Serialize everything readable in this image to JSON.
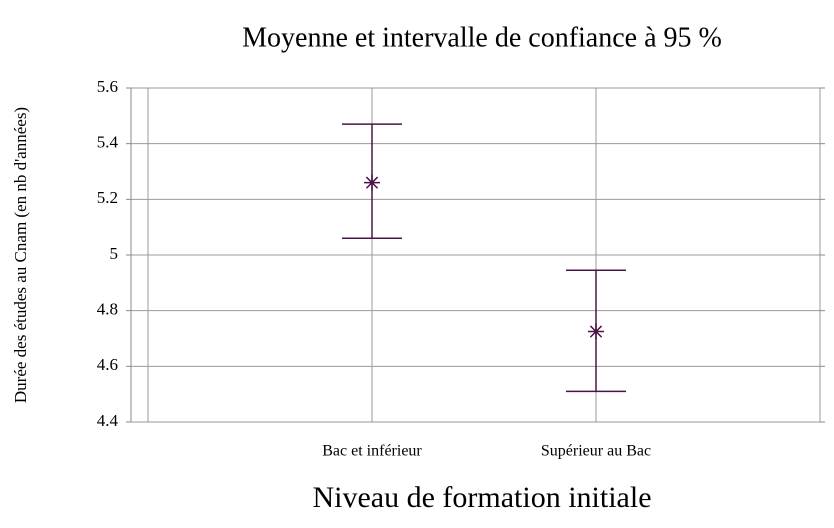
{
  "chart_data": {
    "type": "errorbar",
    "title": "Moyenne et intervalle de confiance à 95 %",
    "x_label": "Niveau de formation initiale",
    "y_label": "Durée des études au Cnam (en nb d'années)",
    "categories": [
      "Bac et inférieur",
      "Supérieur au Bac"
    ],
    "values": [
      5.26,
      4.725
    ],
    "ci_low": [
      5.06,
      4.51
    ],
    "ci_high": [
      5.47,
      4.945
    ],
    "color": "#4b1448",
    "ylim": [
      4.4,
      5.6
    ],
    "yticks": [
      4.4,
      4.6,
      4.8,
      5,
      5.2,
      5.4,
      5.6
    ],
    "grid": true
  }
}
